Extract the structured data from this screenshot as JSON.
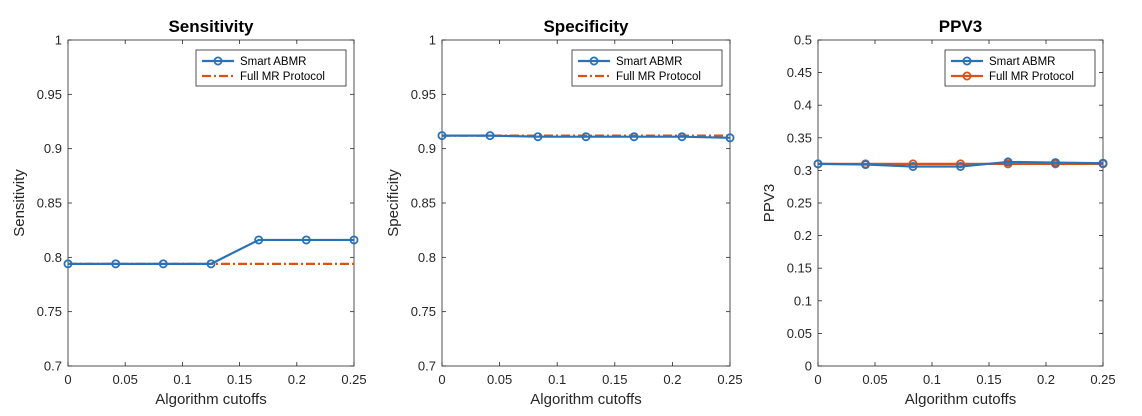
{
  "colors": {
    "smart": "#2a72b8",
    "full": "#d95319"
  },
  "chart_data": [
    {
      "type": "line",
      "title": "Sensitivity",
      "xlabel": "Algorithm cutoffs",
      "ylabel": "Sensitivity",
      "xlim": [
        0,
        0.25
      ],
      "ylim": [
        0.7,
        1
      ],
      "xticks": [
        0,
        0.05,
        0.1,
        0.15,
        0.2,
        0.25
      ],
      "xtick_labels": [
        "0",
        "0.05",
        "0.1",
        "0.15",
        "0.2",
        "0.25"
      ],
      "yticks": [
        0.7,
        0.75,
        0.8,
        0.85,
        0.9,
        0.95,
        1
      ],
      "ytick_labels": [
        "0.7",
        "0.75",
        "0.8",
        "0.85",
        "0.9",
        "0.95",
        "1"
      ],
      "legend_position": "top-right",
      "x": [
        0,
        0.0417,
        0.0833,
        0.125,
        0.1667,
        0.2083,
        0.25
      ],
      "series": [
        {
          "name": "Smart ABMR",
          "style": "solid-circle",
          "values": [
            0.794,
            0.794,
            0.794,
            0.794,
            0.816,
            0.816,
            0.816
          ]
        },
        {
          "name": "Full MR Protocol",
          "style": "dashdot",
          "values": [
            0.794,
            0.794,
            0.794,
            0.794,
            0.794,
            0.794,
            0.794
          ]
        }
      ]
    },
    {
      "type": "line",
      "title": "Specificity",
      "xlabel": "Algorithm cutoffs",
      "ylabel": "Specificity",
      "xlim": [
        0,
        0.25
      ],
      "ylim": [
        0.7,
        1
      ],
      "xticks": [
        0,
        0.05,
        0.1,
        0.15,
        0.2,
        0.25
      ],
      "xtick_labels": [
        "0",
        "0.05",
        "0.1",
        "0.15",
        "0.2",
        "0.25"
      ],
      "yticks": [
        0.7,
        0.75,
        0.8,
        0.85,
        0.9,
        0.95,
        1
      ],
      "ytick_labels": [
        "0.7",
        "0.75",
        "0.8",
        "0.85",
        "0.9",
        "0.95",
        "1"
      ],
      "legend_position": "top-right",
      "x": [
        0,
        0.0417,
        0.0833,
        0.125,
        0.1667,
        0.2083,
        0.25
      ],
      "series": [
        {
          "name": "Smart ABMR",
          "style": "solid-circle",
          "values": [
            0.912,
            0.912,
            0.911,
            0.911,
            0.911,
            0.911,
            0.91
          ]
        },
        {
          "name": "Full MR Protocol",
          "style": "dashdot",
          "values": [
            0.912,
            0.912,
            0.912,
            0.912,
            0.912,
            0.912,
            0.912
          ]
        }
      ]
    },
    {
      "type": "line",
      "title": "PPV3",
      "xlabel": "Algorithm cutoffs",
      "ylabel": "PPV3",
      "xlim": [
        0,
        0.25
      ],
      "ylim": [
        0,
        0.5
      ],
      "xticks": [
        0,
        0.05,
        0.1,
        0.15,
        0.2,
        0.25
      ],
      "xtick_labels": [
        "0",
        "0.05",
        "0.1",
        "0.15",
        "0.2",
        "0.25"
      ],
      "yticks": [
        0,
        0.05,
        0.1,
        0.15,
        0.2,
        0.25,
        0.3,
        0.35,
        0.4,
        0.45,
        0.5
      ],
      "ytick_labels": [
        "0",
        "0.05",
        "0.1",
        "0.15",
        "0.2",
        "0.25",
        "0.3",
        "0.35",
        "0.4",
        "0.45",
        "0.5"
      ],
      "legend_position": "top-right",
      "x": [
        0,
        0.0417,
        0.0833,
        0.125,
        0.1667,
        0.2083,
        0.25
      ],
      "series": [
        {
          "name": "Smart ABMR",
          "style": "solid-circle",
          "values": [
            0.31,
            0.309,
            0.306,
            0.306,
            0.313,
            0.312,
            0.311
          ]
        },
        {
          "name": "Full MR Protocol",
          "style": "solid-circle",
          "values": [
            0.31,
            0.31,
            0.31,
            0.31,
            0.31,
            0.31,
            0.31
          ]
        }
      ]
    }
  ]
}
